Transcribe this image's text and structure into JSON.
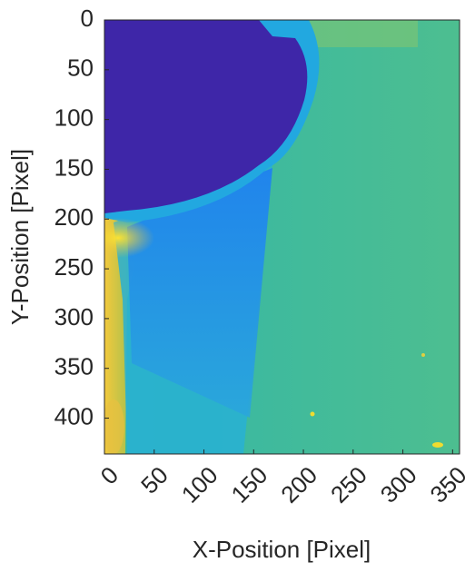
{
  "chart_data": {
    "type": "heatmap",
    "xlabel": "X-Position [Pixel]",
    "ylabel": "Y-Position [Pixel]",
    "xlim": [
      0,
      357
    ],
    "ylim": [
      0,
      436
    ],
    "y_reversed": true,
    "xticks": [
      0,
      50,
      100,
      150,
      200,
      250,
      300,
      350
    ],
    "yticks": [
      0,
      50,
      100,
      150,
      200,
      250,
      300,
      350,
      400
    ]
  }
}
